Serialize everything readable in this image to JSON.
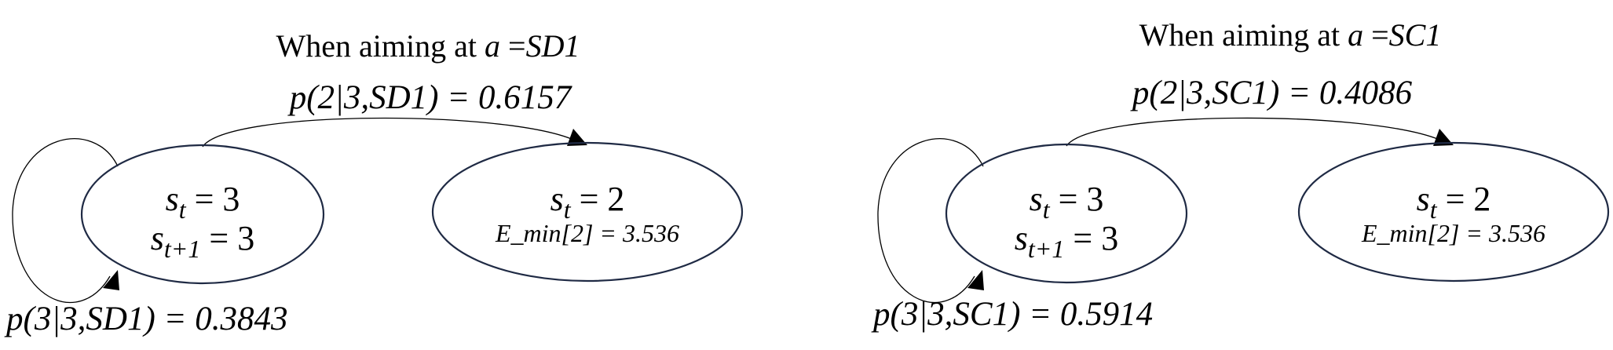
{
  "diagrams": [
    {
      "title_prefix": "When aiming at ",
      "title_var": "a",
      "title_eq": " =",
      "title_action": "SD1",
      "forward_prob": "p(2|3,SD1) = 0.6157",
      "self_prob": "p(3|3,SD1) = 0.3843",
      "left_node": {
        "line1_var": "s",
        "line1_sub": "t",
        "line1_rest": " = 3",
        "line2_var": "s",
        "line2_sub": "t+1",
        "line2_rest": " = 3"
      },
      "right_node": {
        "line1_var": "s",
        "line1_sub": "t",
        "line1_rest": " = 2",
        "line2": "E_min[2] = 3.536"
      }
    },
    {
      "title_prefix": "When aiming at ",
      "title_var": "a",
      "title_eq": " =",
      "title_action": "SC1",
      "forward_prob": "p(2|3,SC1) = 0.4086",
      "self_prob": "p(3|3,SC1) = 0.5914",
      "left_node": {
        "line1_var": "s",
        "line1_sub": "t",
        "line1_rest": " = 3",
        "line2_var": "s",
        "line2_sub": "t+1",
        "line2_rest": " = 3"
      },
      "right_node": {
        "line1_var": "s",
        "line1_sub": "t",
        "line1_rest": " = 2",
        "line2": "E_min[2] = 3.536"
      }
    }
  ]
}
